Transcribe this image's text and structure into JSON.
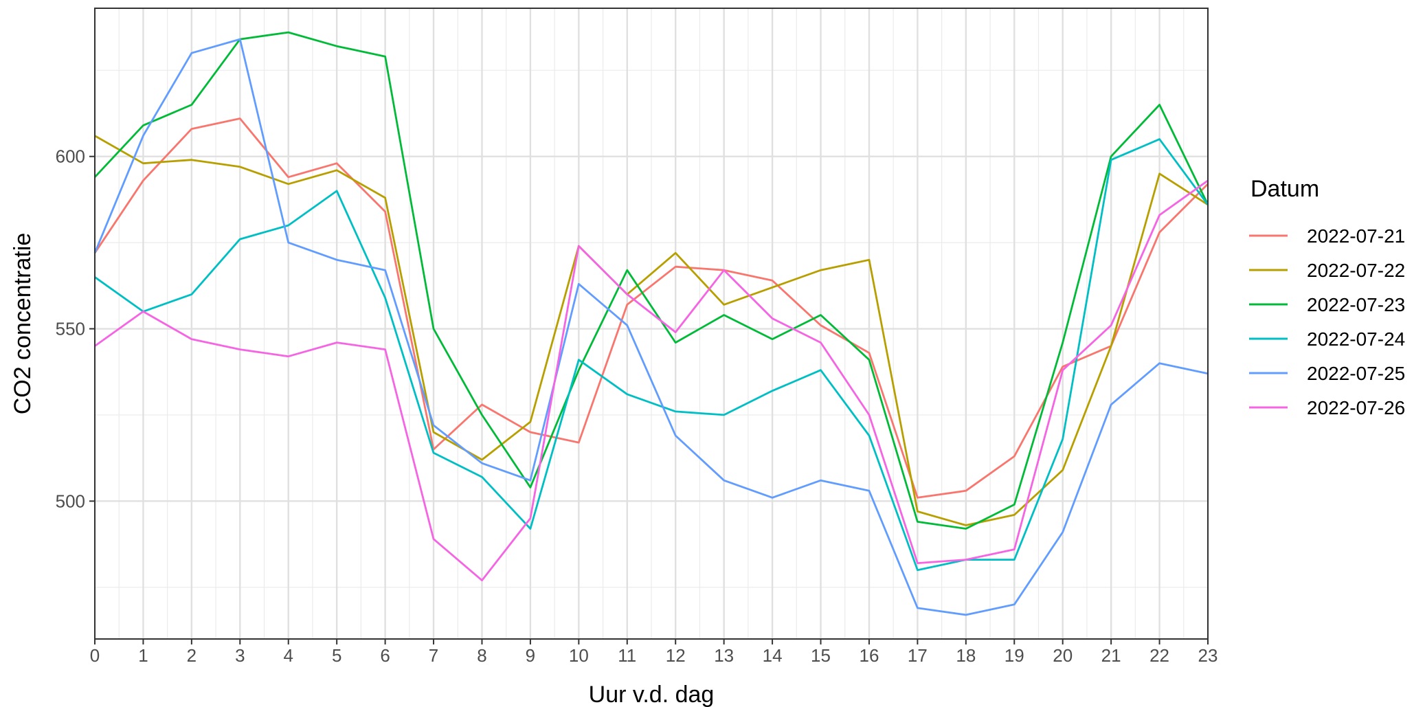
{
  "chart_data": {
    "type": "line",
    "title": "",
    "xlabel": "Uur v.d. dag",
    "ylabel": "CO2 concentratie",
    "x": [
      0,
      1,
      2,
      3,
      4,
      5,
      6,
      7,
      8,
      9,
      10,
      11,
      12,
      13,
      14,
      15,
      16,
      17,
      18,
      19,
      20,
      21,
      22,
      23
    ],
    "xlim": [
      0,
      23
    ],
    "ylim": [
      460,
      643
    ],
    "y_ticks": [
      500,
      550,
      600
    ],
    "y_tick_labels": [
      "500",
      "550",
      "600"
    ],
    "x_tick_labels": [
      "0",
      "1",
      "2",
      "3",
      "4",
      "5",
      "6",
      "7",
      "8",
      "9",
      "10",
      "11",
      "12",
      "13",
      "14",
      "15",
      "16",
      "17",
      "18",
      "19",
      "20",
      "21",
      "22",
      "23"
    ],
    "grid": true,
    "legend_title": "Datum",
    "legend_position": "right",
    "series": [
      {
        "name": "2022-07-21",
        "color": "#F8766D",
        "values": [
          572,
          593,
          608,
          611,
          594,
          598,
          584,
          515,
          528,
          520,
          517,
          557,
          568,
          567,
          564,
          551,
          543,
          501,
          503,
          513,
          539,
          545,
          578,
          592
        ]
      },
      {
        "name": "2022-07-22",
        "color": "#B79F00",
        "values": [
          606,
          598,
          599,
          597,
          592,
          596,
          588,
          520,
          512,
          523,
          574,
          560,
          572,
          557,
          562,
          567,
          570,
          497,
          493,
          496,
          509,
          545,
          595,
          586
        ]
      },
      {
        "name": "2022-07-23",
        "color": "#00BA38",
        "values": [
          594,
          609,
          615,
          634,
          636,
          632,
          629,
          550,
          525,
          504,
          538,
          567,
          546,
          554,
          547,
          554,
          541,
          494,
          492,
          499,
          546,
          600,
          615,
          586
        ]
      },
      {
        "name": "2022-07-24",
        "color": "#00BFC4",
        "values": [
          565,
          555,
          560,
          576,
          580,
          590,
          559,
          514,
          507,
          492,
          541,
          531,
          526,
          525,
          532,
          538,
          519,
          480,
          483,
          483,
          518,
          599,
          605,
          586
        ]
      },
      {
        "name": "2022-07-25",
        "color": "#619CFF",
        "values": [
          572,
          606,
          630,
          634,
          575,
          570,
          567,
          522,
          511,
          506,
          563,
          551,
          519,
          506,
          501,
          506,
          503,
          469,
          467,
          470,
          491,
          528,
          540,
          537
        ]
      },
      {
        "name": "2022-07-26",
        "color": "#F564E3",
        "values": [
          545,
          555,
          547,
          544,
          542,
          546,
          544,
          489,
          477,
          495,
          574,
          560,
          549,
          567,
          553,
          546,
          525,
          482,
          483,
          486,
          538,
          551,
          583,
          593
        ]
      }
    ]
  }
}
